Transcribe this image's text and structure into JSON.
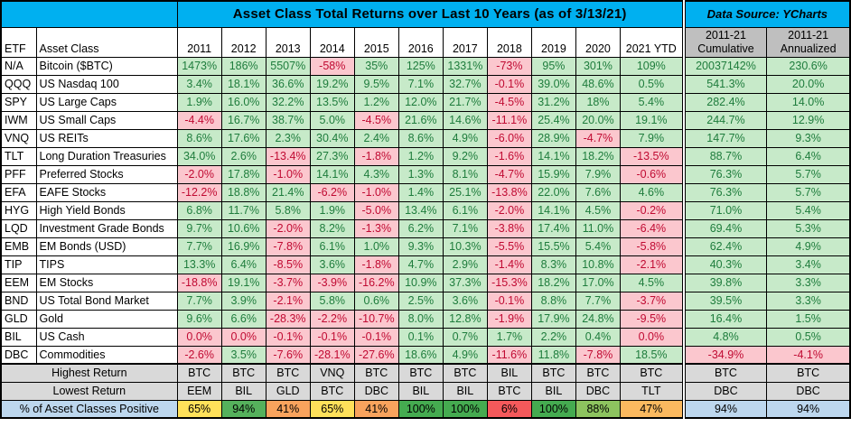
{
  "title": "Asset Class Total Returns over Last 10 Years (as of 3/13/21)",
  "data_source": "Data Source: YCharts",
  "colors": {
    "header_blue": "#00B0F0",
    "hdr_gray": "#BFBFBF",
    "sum_gray": "#D9D9D9",
    "sum_blue": "#BDD7EE",
    "pos_bg": "#C7EAC9",
    "pos_text": "#1E7C3C",
    "neg_bg": "#FBC7CE",
    "neg_text": "#C00A32"
  },
  "headers": {
    "etf": "ETF",
    "asset_class": "Asset Class",
    "periods": [
      "2011",
      "2012",
      "2013",
      "2014",
      "2015",
      "2016",
      "2017",
      "2018",
      "2019",
      "2020",
      "2021 YTD"
    ],
    "cumulative_line1": "2011-21",
    "cumulative_line2": "Cumulative",
    "annualized_line1": "2011-21",
    "annualized_line2": "Annualized"
  },
  "chart_data": {
    "type": "table",
    "title": "Asset Class Total Returns over Last 10 Years (as of 3/13/21)",
    "columns": [
      "2011",
      "2012",
      "2013",
      "2014",
      "2015",
      "2016",
      "2017",
      "2018",
      "2019",
      "2020",
      "2021 YTD",
      "2011-21 Cumulative",
      "2011-21 Annualized"
    ],
    "rows": [
      {
        "etf": "N/A",
        "asset_class": "Bitcoin ($BTC)",
        "values": [
          "1473%",
          "186%",
          "5507%",
          "-58%",
          "35%",
          "125%",
          "1331%",
          "-73%",
          "95%",
          "301%",
          "109%",
          "20037142%",
          "230.6%"
        ]
      },
      {
        "etf": "QQQ",
        "asset_class": "US Nasdaq 100",
        "values": [
          "3.4%",
          "18.1%",
          "36.6%",
          "19.2%",
          "9.5%",
          "7.1%",
          "32.7%",
          "-0.1%",
          "39.0%",
          "48.6%",
          "0.5%",
          "541.3%",
          "20.0%"
        ]
      },
      {
        "etf": "SPY",
        "asset_class": "US Large Caps",
        "values": [
          "1.9%",
          "16.0%",
          "32.2%",
          "13.5%",
          "1.2%",
          "12.0%",
          "21.7%",
          "-4.5%",
          "31.2%",
          "18%",
          "5.4%",
          "282.4%",
          "14.0%"
        ]
      },
      {
        "etf": "IWM",
        "asset_class": "US Small Caps",
        "values": [
          "-4.4%",
          "16.7%",
          "38.7%",
          "5.0%",
          "-4.5%",
          "21.6%",
          "14.6%",
          "-11.1%",
          "25.4%",
          "20.0%",
          "19.1%",
          "244.7%",
          "12.9%"
        ]
      },
      {
        "etf": "VNQ",
        "asset_class": "US REITs",
        "values": [
          "8.6%",
          "17.6%",
          "2.3%",
          "30.4%",
          "2.4%",
          "8.6%",
          "4.9%",
          "-6.0%",
          "28.9%",
          "-4.7%",
          "7.9%",
          "147.7%",
          "9.3%"
        ]
      },
      {
        "etf": "TLT",
        "asset_class": "Long Duration Treasuries",
        "values": [
          "34.0%",
          "2.6%",
          "-13.4%",
          "27.3%",
          "-1.8%",
          "1.2%",
          "9.2%",
          "-1.6%",
          "14.1%",
          "18.2%",
          "-13.5%",
          "88.7%",
          "6.4%"
        ]
      },
      {
        "etf": "PFF",
        "asset_class": "Preferred Stocks",
        "values": [
          "-2.0%",
          "17.8%",
          "-1.0%",
          "14.1%",
          "4.3%",
          "1.3%",
          "8.1%",
          "-4.7%",
          "15.9%",
          "7.9%",
          "-0.6%",
          "76.3%",
          "5.7%"
        ]
      },
      {
        "etf": "EFA",
        "asset_class": "EAFE Stocks",
        "values": [
          "-12.2%",
          "18.8%",
          "21.4%",
          "-6.2%",
          "-1.0%",
          "1.4%",
          "25.1%",
          "-13.8%",
          "22.0%",
          "7.6%",
          "4.6%",
          "76.3%",
          "5.7%"
        ]
      },
      {
        "etf": "HYG",
        "asset_class": "High Yield Bonds",
        "values": [
          "6.8%",
          "11.7%",
          "5.8%",
          "1.9%",
          "-5.0%",
          "13.4%",
          "6.1%",
          "-2.0%",
          "14.1%",
          "4.5%",
          "-0.2%",
          "71.0%",
          "5.4%"
        ]
      },
      {
        "etf": "LQD",
        "asset_class": "Investment Grade Bonds",
        "values": [
          "9.7%",
          "10.6%",
          "-2.0%",
          "8.2%",
          "-1.3%",
          "6.2%",
          "7.1%",
          "-3.8%",
          "17.4%",
          "11.0%",
          "-6.4%",
          "69.4%",
          "5.3%"
        ]
      },
      {
        "etf": "EMB",
        "asset_class": "EM Bonds (USD)",
        "values": [
          "7.7%",
          "16.9%",
          "-7.8%",
          "6.1%",
          "1.0%",
          "9.3%",
          "10.3%",
          "-5.5%",
          "15.5%",
          "5.4%",
          "-5.8%",
          "62.4%",
          "4.9%"
        ]
      },
      {
        "etf": "TIP",
        "asset_class": "TIPS",
        "values": [
          "13.3%",
          "6.4%",
          "-8.5%",
          "3.6%",
          "-1.8%",
          "4.7%",
          "2.9%",
          "-1.4%",
          "8.3%",
          "10.8%",
          "-2.1%",
          "40.3%",
          "3.4%"
        ]
      },
      {
        "etf": "EEM",
        "asset_class": "EM Stocks",
        "values": [
          "-18.8%",
          "19.1%",
          "-3.7%",
          "-3.9%",
          "-16.2%",
          "10.9%",
          "37.3%",
          "-15.3%",
          "18.2%",
          "17.0%",
          "4.5%",
          "39.8%",
          "3.3%"
        ]
      },
      {
        "etf": "BND",
        "asset_class": "US Total Bond Market",
        "values": [
          "7.7%",
          "3.9%",
          "-2.1%",
          "5.8%",
          "0.6%",
          "2.5%",
          "3.6%",
          "-0.1%",
          "8.8%",
          "7.7%",
          "-3.7%",
          "39.5%",
          "3.3%"
        ]
      },
      {
        "etf": "GLD",
        "asset_class": "Gold",
        "values": [
          "9.6%",
          "6.6%",
          "-28.3%",
          "-2.2%",
          "-10.7%",
          "8.0%",
          "12.8%",
          "-1.9%",
          "17.9%",
          "24.8%",
          "-9.5%",
          "16.4%",
          "1.5%"
        ]
      },
      {
        "etf": "BIL",
        "asset_class": "US Cash",
        "values": [
          "0.0%",
          "0.0%",
          "-0.1%",
          "-0.1%",
          "-0.1%",
          "0.1%",
          "0.7%",
          "1.7%",
          "2.2%",
          "0.4%",
          "0.0%",
          "4.8%",
          "0.5%"
        ]
      },
      {
        "etf": "DBC",
        "asset_class": "Commodities",
        "values": [
          "-2.6%",
          "3.5%",
          "-7.6%",
          "-28.1%",
          "-27.6%",
          "18.6%",
          "4.9%",
          "-11.6%",
          "11.8%",
          "-7.8%",
          "18.5%",
          "-34.9%",
          "-4.1%"
        ]
      }
    ]
  },
  "summary": {
    "highest_label": "Highest Return",
    "highest": [
      "BTC",
      "BTC",
      "BTC",
      "VNQ",
      "BTC",
      "BTC",
      "BTC",
      "BIL",
      "BTC",
      "BTC",
      "BTC",
      "BTC",
      "BTC"
    ],
    "lowest_label": "Lowest Return",
    "lowest": [
      "EEM",
      "BIL",
      "GLD",
      "BTC",
      "DBC",
      "BIL",
      "BIL",
      "BTC",
      "BIL",
      "DBC",
      "TLT",
      "DBC",
      "DBC"
    ],
    "percent_label": "% of Asset Classes Positive",
    "percent": [
      "65%",
      "94%",
      "41%",
      "65%",
      "41%",
      "100%",
      "100%",
      "6%",
      "100%",
      "88%",
      "47%",
      "94%",
      "94%"
    ],
    "percent_colors": [
      "#FFE15A",
      "#55B15C",
      "#F8A35D",
      "#FFE15A",
      "#F8A35D",
      "#45AB50",
      "#45AB50",
      "#F4595B",
      "#45AB50",
      "#8DC45F",
      "#FBB95F",
      "#BDD7EE",
      "#BDD7EE"
    ]
  }
}
